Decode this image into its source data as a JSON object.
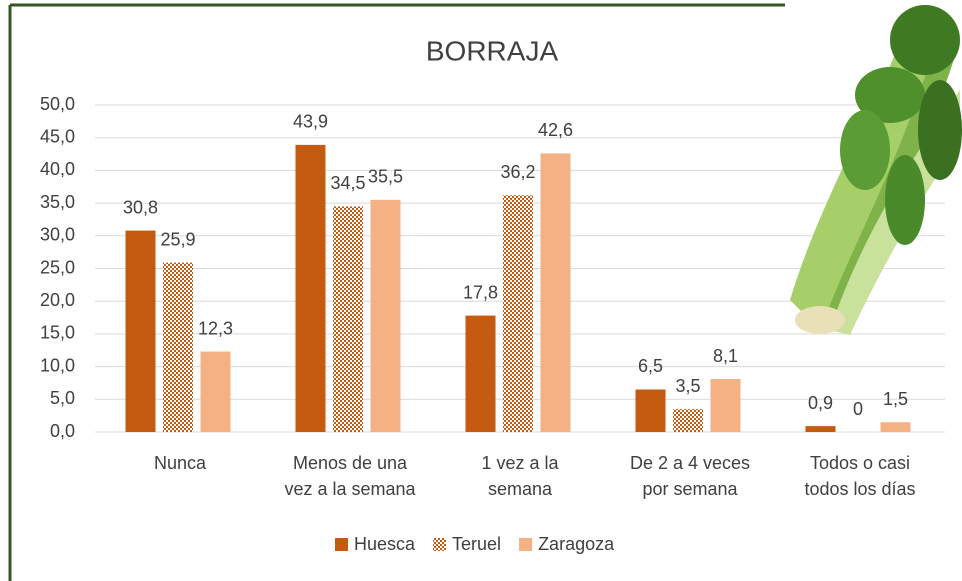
{
  "chart_data": {
    "type": "bar",
    "title": "BORRAJA",
    "categories": [
      "Nunca",
      "Menos de una\nvez a la semana",
      "1 vez a la\nsemana",
      "De 2 a 4 veces\npor semana",
      "Todos o casi\ntodos los días"
    ],
    "series": [
      {
        "name": "Huesca",
        "color": "#c55a11",
        "values": [
          30.8,
          43.9,
          17.8,
          6.5,
          0.9
        ],
        "value_labels": [
          "30,8",
          "43,9",
          "17,8",
          "6,5",
          "0,9"
        ]
      },
      {
        "name": "Teruel",
        "color": "#c55a11",
        "pattern": "checker",
        "values": [
          25.9,
          34.5,
          36.2,
          3.5,
          0
        ],
        "value_labels": [
          "25,9",
          "34,5",
          "36,2",
          "3,5",
          "0"
        ]
      },
      {
        "name": "Zaragoza",
        "color": "#f4b183",
        "values": [
          12.3,
          35.5,
          42.6,
          8.1,
          1.5
        ],
        "value_labels": [
          "12,3",
          "35,5",
          "42,6",
          "8,1",
          "1,5"
        ]
      }
    ],
    "ylim": [
      0,
      50
    ],
    "yticks": [
      {
        "value": 0,
        "label": "0,0"
      },
      {
        "value": 5,
        "label": "5,0"
      },
      {
        "value": 10,
        "label": "10,0"
      },
      {
        "value": 15,
        "label": "15,0"
      },
      {
        "value": 20,
        "label": "20,0"
      },
      {
        "value": 25,
        "label": "25,0"
      },
      {
        "value": 30,
        "label": "30,0"
      },
      {
        "value": 35,
        "label": "35,0"
      },
      {
        "value": 40,
        "label": "40,0"
      },
      {
        "value": 45,
        "label": "45,0"
      },
      {
        "value": 50,
        "label": "50,0"
      }
    ],
    "grid": true,
    "legend": "bottom"
  }
}
